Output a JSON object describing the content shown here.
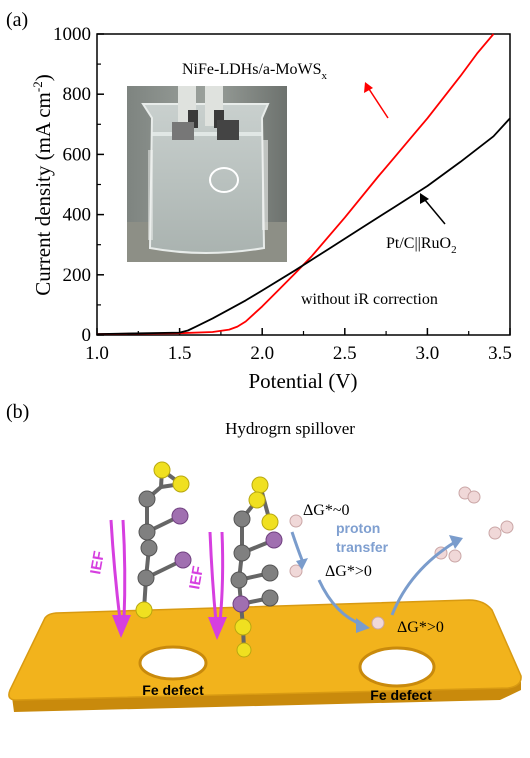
{
  "panel_a": {
    "label": "(a)",
    "chart_data": {
      "type": "line",
      "xlabel": "Potential (V)",
      "ylabel": "Current density (mA cm",
      "ylabel_sup": "-2",
      "ylabel_end": ")",
      "xlim": [
        1.0,
        3.5
      ],
      "ylim": [
        0,
        1000
      ],
      "x_ticks": [
        "1.0",
        "1.5",
        "2.0",
        "2.5",
        "3.0",
        "3.5"
      ],
      "y_ticks": [
        "0",
        "200",
        "400",
        "600",
        "800",
        "1000"
      ],
      "grid": false,
      "series": [
        {
          "name": "NiFe-LDHs/a-MoWS",
          "name_sub": "x",
          "color": "#ff0000",
          "x": [
            1.0,
            1.5,
            1.7,
            1.8,
            1.85,
            1.9,
            2.0,
            2.1,
            2.2,
            2.3,
            2.5,
            2.7,
            2.8,
            2.9,
            3.0,
            3.1,
            3.2,
            3.3,
            3.4
          ],
          "y": [
            3,
            6,
            10,
            18,
            28,
            45,
            95,
            150,
            205,
            262,
            390,
            525,
            590,
            655,
            720,
            790,
            860,
            935,
            1000
          ]
        },
        {
          "name": "Pt/C||RuO",
          "name_sub": "2",
          "color": "#000000",
          "x": [
            1.0,
            1.5,
            1.55,
            1.6,
            1.7,
            1.8,
            1.9,
            2.0,
            2.2,
            2.4,
            2.6,
            2.8,
            3.0,
            3.2,
            3.4,
            3.5
          ],
          "y": [
            3,
            8,
            15,
            28,
            55,
            85,
            115,
            148,
            215,
            285,
            355,
            425,
            495,
            575,
            660,
            720
          ]
        }
      ],
      "annotations": [
        "without iR correction"
      ]
    }
  },
  "panel_b": {
    "label": "(b)",
    "title": "Hydrogrn spillover",
    "labels": {
      "dg1": "ΔG*~0",
      "dg2": "ΔG*>0",
      "dg3": "ΔG*>0",
      "proton": "proton",
      "transfer": "transfer",
      "ief1": "IEF",
      "ief2": "IEF",
      "defect1": "Fe defect",
      "defect2": "Fe defect"
    },
    "colors": {
      "plate": "#f2b31c",
      "plate_edge": "#c98a0c",
      "ief": "#d63fe0",
      "proton_text": "#7f9fd0",
      "arrow": "#7a9ccc",
      "sulfur": "#f0e020",
      "carbon": "#808080",
      "metal": "#a06fb0",
      "hydrogen": "#f0d8d8"
    }
  }
}
